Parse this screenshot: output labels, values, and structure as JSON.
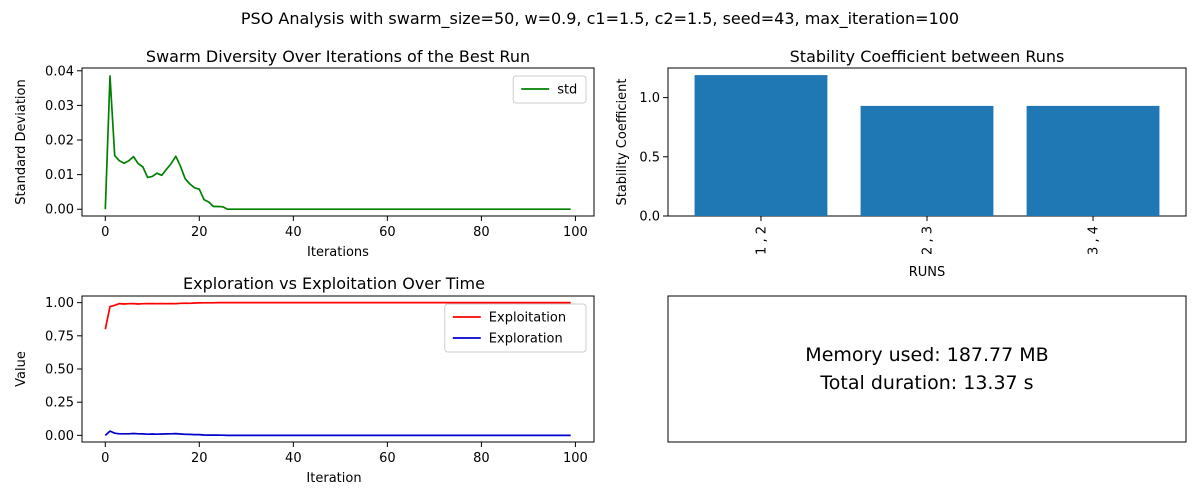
{
  "suptitle": "PSO Analysis with swarm_size=50, w=0.9, c1=1.5, c2=1.5, seed=43, max_iteration=100",
  "chart_data": [
    {
      "id": "diversity",
      "type": "line",
      "title": "Swarm Diversity Over Iterations of the Best Run",
      "xlabel": "Iterations",
      "ylabel": "Standard Deviation",
      "xlim": [
        -4.95,
        103.95
      ],
      "ylim": [
        -0.00195,
        0.0408
      ],
      "xticks": [
        0,
        20,
        40,
        60,
        80,
        100
      ],
      "yticks": [
        0.0,
        0.01,
        0.02,
        0.03,
        0.04
      ],
      "ytick_labels": [
        "0.00",
        "0.01",
        "0.02",
        "0.03",
        "0.04"
      ],
      "legend_position": "upper right",
      "series": [
        {
          "name": "std",
          "color": "#008000",
          "x": [
            0,
            1,
            2,
            3,
            4,
            5,
            6,
            7,
            8,
            9,
            10,
            11,
            12,
            13,
            14,
            15,
            16,
            17,
            18,
            19,
            20,
            21,
            22,
            23,
            24,
            25,
            26,
            99
          ],
          "y": [
            0.0,
            0.0385,
            0.0155,
            0.014,
            0.0133,
            0.014,
            0.0152,
            0.0132,
            0.0122,
            0.0092,
            0.0095,
            0.0104,
            0.0098,
            0.0115,
            0.0132,
            0.0153,
            0.0124,
            0.0088,
            0.0073,
            0.0062,
            0.0058,
            0.0028,
            0.0021,
            0.0008,
            0.0008,
            0.0007,
            0.0,
            0.0
          ]
        }
      ]
    },
    {
      "id": "stability",
      "type": "bar",
      "title": "Stability Coefficient between Runs",
      "xlabel": "RUNS",
      "ylabel": "Stability Coefficient",
      "categories": [
        "1 , 2",
        "2 , 3",
        "3 , 4"
      ],
      "values": [
        1.19,
        0.93,
        0.93
      ],
      "ylim": [
        0,
        1.25
      ],
      "yticks": [
        0.0,
        0.5,
        1.0
      ],
      "ytick_labels": [
        "0.0",
        "0.5",
        "1.0"
      ],
      "color": "#1f77b4"
    },
    {
      "id": "explore",
      "type": "line",
      "title": "Exploration vs Exploitation Over Time",
      "xlabel": "Iteration",
      "ylabel": "Value",
      "xlim": [
        -4.95,
        103.95
      ],
      "ylim": [
        -0.05,
        1.05
      ],
      "xticks": [
        0,
        20,
        40,
        60,
        80,
        100
      ],
      "yticks": [
        0.0,
        0.25,
        0.5,
        0.75,
        1.0
      ],
      "ytick_labels": [
        "0.00",
        "0.25",
        "0.50",
        "0.75",
        "1.00"
      ],
      "legend_position": "upper right",
      "series": [
        {
          "name": "Exploitation",
          "color": "#ff0000",
          "x": [
            0,
            1,
            2,
            3,
            4,
            5,
            6,
            7,
            8,
            9,
            10,
            11,
            12,
            13,
            14,
            15,
            16,
            17,
            18,
            19,
            20,
            21,
            22,
            23,
            24,
            25,
            26,
            99
          ],
          "y": [
            0.8,
            0.97,
            0.98,
            0.993,
            0.99,
            0.992,
            0.993,
            0.99,
            0.992,
            0.993,
            0.993,
            0.992,
            0.993,
            0.992,
            0.993,
            0.992,
            0.995,
            0.996,
            0.995,
            0.997,
            0.998,
            0.999,
            0.999,
            0.999,
            1.0,
            1.0,
            1.0,
            1.0
          ]
        },
        {
          "name": "Exploration",
          "color": "#0000cc",
          "x": [
            0,
            1,
            2,
            3,
            4,
            5,
            6,
            7,
            8,
            9,
            10,
            11,
            12,
            13,
            14,
            15,
            16,
            17,
            18,
            19,
            20,
            21,
            22,
            23,
            24,
            25,
            26,
            99
          ],
          "y": [
            0.0,
            0.032,
            0.016,
            0.012,
            0.012,
            0.012,
            0.014,
            0.012,
            0.011,
            0.009,
            0.01,
            0.009,
            0.01,
            0.011,
            0.012,
            0.013,
            0.01,
            0.008,
            0.007,
            0.006,
            0.006,
            0.003,
            0.002,
            0.002,
            0.002,
            0.001,
            0.0,
            0.0
          ]
        }
      ]
    }
  ],
  "info": {
    "memory": "Memory used: 187.77 MB",
    "duration": "Total duration: 13.37 s"
  }
}
